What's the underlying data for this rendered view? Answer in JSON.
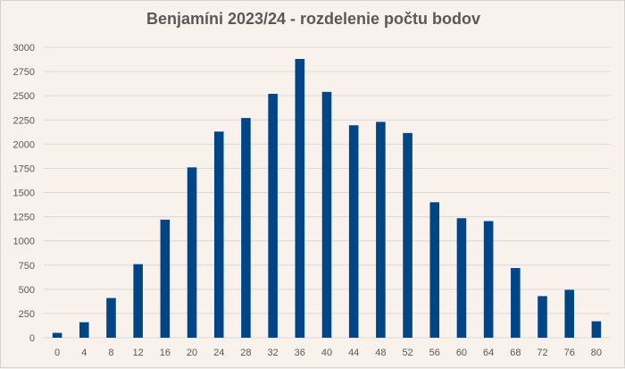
{
  "chart_data": {
    "type": "bar",
    "title": "Benjamíni 2023/24 - rozdelenie počtu bodov",
    "xlabel": "",
    "ylabel": "",
    "categories": [
      "0",
      "4",
      "8",
      "12",
      "16",
      "20",
      "24",
      "28",
      "32",
      "36",
      "40",
      "44",
      "48",
      "52",
      "56",
      "60",
      "64",
      "68",
      "72",
      "76",
      "80"
    ],
    "values": [
      50,
      160,
      410,
      760,
      1220,
      1760,
      2130,
      2270,
      2520,
      2880,
      2540,
      2195,
      2230,
      2115,
      1400,
      1235,
      1205,
      720,
      430,
      495,
      170
    ],
    "ylim": [
      0,
      3000
    ],
    "yticks": [
      0,
      250,
      500,
      750,
      1000,
      1250,
      1500,
      1750,
      2000,
      2250,
      2500,
      2750,
      3000
    ],
    "grid": true,
    "legend": "none",
    "colors": {
      "bar": "#004687",
      "grid": "#d9d9d9",
      "text": "#595959",
      "background": "#f8f1ec"
    }
  }
}
